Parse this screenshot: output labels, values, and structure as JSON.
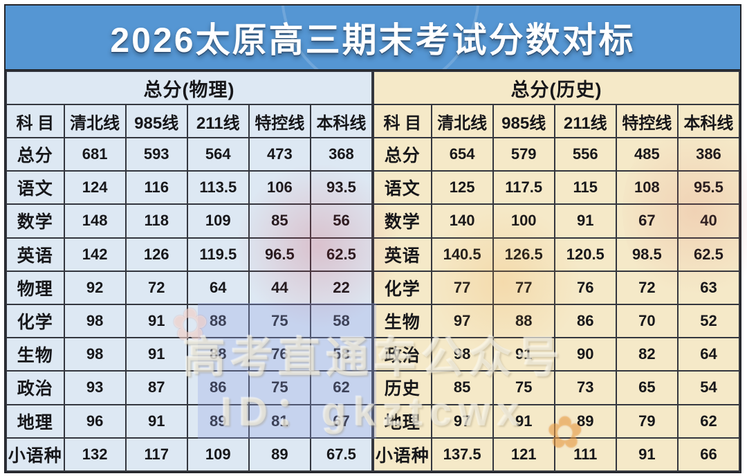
{
  "title": "2026太原高三期末考试分数对标",
  "watermark": {
    "line1": "高考直通车公众号",
    "line2": "ID：gkztcwx"
  },
  "colors": {
    "title_bg": "#5596d3",
    "title_text": "#ffffff",
    "physics_bg": "#dde8f3",
    "history_bg": "#f5e9c8",
    "grid_border": "#33363e",
    "text": "#17171a",
    "page_bg": "#ffffff"
  },
  "chart_data": [
    {
      "type": "table",
      "title": "总分(物理)",
      "columns": [
        "科 目",
        "清北线",
        "985线",
        "211线",
        "特控线",
        "本科线"
      ],
      "rows": [
        [
          "总分",
          "681",
          "593",
          "564",
          "473",
          "368"
        ],
        [
          "语文",
          "124",
          "116",
          "113.5",
          "106",
          "93.5"
        ],
        [
          "数学",
          "148",
          "118",
          "109",
          "85",
          "56"
        ],
        [
          "英语",
          "142",
          "126",
          "119.5",
          "96.5",
          "62.5"
        ],
        [
          "物理",
          "92",
          "72",
          "64",
          "44",
          "22"
        ],
        [
          "化学",
          "98",
          "91",
          "88",
          "75",
          "58"
        ],
        [
          "生物",
          "98",
          "91",
          "88",
          "76",
          "58"
        ],
        [
          "政治",
          "93",
          "87",
          "86",
          "75",
          "62"
        ],
        [
          "地理",
          "96",
          "91",
          "89",
          "81",
          "67"
        ],
        [
          "小语种",
          "132",
          "117",
          "109",
          "89",
          "67.5"
        ]
      ]
    },
    {
      "type": "table",
      "title": "总分(历史)",
      "columns": [
        "科 目",
        "清北线",
        "985线",
        "211线",
        "特控线",
        "本科线"
      ],
      "rows": [
        [
          "总分",
          "654",
          "579",
          "556",
          "485",
          "386"
        ],
        [
          "语文",
          "125",
          "117.5",
          "115",
          "108",
          "95.5"
        ],
        [
          "数学",
          "140",
          "100",
          "91",
          "67",
          "40"
        ],
        [
          "英语",
          "140.5",
          "126.5",
          "120.5",
          "98.5",
          "62.5"
        ],
        [
          "化学",
          "77",
          "77",
          "76",
          "72",
          "63"
        ],
        [
          "生物",
          "97",
          "88",
          "86",
          "70",
          "52"
        ],
        [
          "政治",
          "98",
          "91",
          "90",
          "82",
          "64"
        ],
        [
          "历史",
          "85",
          "75",
          "73",
          "65",
          "54"
        ],
        [
          "地理",
          "97",
          "91",
          "89",
          "79",
          "62"
        ],
        [
          "小语种",
          "137.5",
          "121",
          "111",
          "91",
          "66"
        ]
      ]
    }
  ]
}
